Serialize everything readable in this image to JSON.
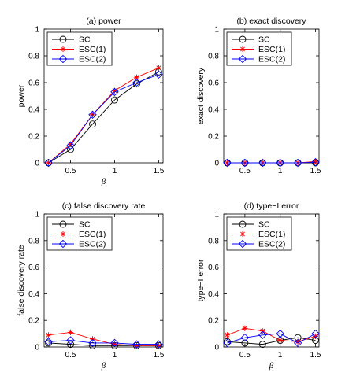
{
  "chart_data": [
    {
      "type": "line",
      "title": "(a) power",
      "xlabel": "β",
      "ylabel": "power",
      "xlim": [
        0.2,
        1.55
      ],
      "ylim": [
        0,
        1
      ],
      "xticks": [
        0.5,
        1,
        1.5
      ],
      "yticks": [
        0,
        0.2,
        0.4,
        0.6,
        0.8,
        1
      ],
      "xtick_labels": [
        "0.5",
        "1",
        "1.5"
      ],
      "ytick_labels": [
        "0",
        "0.2",
        "0.4",
        "0.6",
        "0.8",
        "1"
      ],
      "legend": "top-left",
      "grid": false,
      "x": [
        0.25,
        0.5,
        0.75,
        1.0,
        1.25,
        1.5
      ],
      "series": [
        {
          "name": "SC",
          "color": "#000000",
          "marker": "circle",
          "values": [
            0.0,
            0.1,
            0.29,
            0.47,
            0.59,
            0.68
          ]
        },
        {
          "name": "ESC(1)",
          "color": "#ff0000",
          "marker": "star",
          "values": [
            0.0,
            0.14,
            0.36,
            0.54,
            0.64,
            0.71
          ]
        },
        {
          "name": "ESC(2)",
          "color": "#0000ff",
          "marker": "diamond",
          "values": [
            0.0,
            0.13,
            0.36,
            0.53,
            0.6,
            0.66
          ]
        }
      ]
    },
    {
      "type": "line",
      "title": "(b) exact discovery",
      "xlabel": "",
      "ylabel": "exact discovery",
      "xlim": [
        0.2,
        1.55
      ],
      "ylim": [
        0,
        1
      ],
      "xticks": [
        0.5,
        1,
        1.5
      ],
      "yticks": [
        0,
        0.2,
        0.4,
        0.6,
        0.8,
        1
      ],
      "xtick_labels": [
        "0.5",
        "1",
        "1.5"
      ],
      "ytick_labels": [
        "0",
        "0.2",
        "0.4",
        "0.6",
        "0.8",
        "1"
      ],
      "legend": "top-left",
      "grid": false,
      "x": [
        0.25,
        0.5,
        0.75,
        1.0,
        1.25,
        1.5
      ],
      "series": [
        {
          "name": "SC",
          "color": "#000000",
          "marker": "circle",
          "values": [
            0,
            0,
            0,
            0,
            0,
            0
          ]
        },
        {
          "name": "ESC(1)",
          "color": "#ff0000",
          "marker": "star",
          "values": [
            0,
            0,
            0,
            0,
            0,
            0.01
          ]
        },
        {
          "name": "ESC(2)",
          "color": "#0000ff",
          "marker": "diamond",
          "values": [
            0,
            0,
            0,
            0,
            0,
            0.005
          ]
        }
      ]
    },
    {
      "type": "line",
      "title": "(c) false discovery rate",
      "xlabel": "β",
      "ylabel": "false discovery rate",
      "xlim": [
        0.2,
        1.55
      ],
      "ylim": [
        0,
        1
      ],
      "xticks": [
        0.5,
        1,
        1.5
      ],
      "yticks": [
        0,
        0.2,
        0.4,
        0.6,
        0.8,
        1
      ],
      "xtick_labels": [
        "0.5",
        "1",
        "1.5"
      ],
      "ytick_labels": [
        "0",
        "0.2",
        "0.4",
        "0.6",
        "0.8",
        "1"
      ],
      "legend": "top-left",
      "grid": false,
      "x": [
        0.25,
        0.5,
        0.75,
        1.0,
        1.25,
        1.5
      ],
      "series": [
        {
          "name": "SC",
          "color": "#000000",
          "marker": "circle",
          "values": [
            0.03,
            0.02,
            0.01,
            0.01,
            0.01,
            0.01
          ]
        },
        {
          "name": "ESC(1)",
          "color": "#ff0000",
          "marker": "star",
          "values": [
            0.09,
            0.11,
            0.06,
            0.02,
            0.01,
            0.01
          ]
        },
        {
          "name": "ESC(2)",
          "color": "#0000ff",
          "marker": "diamond",
          "values": [
            0.04,
            0.05,
            0.03,
            0.03,
            0.02,
            0.02
          ]
        }
      ]
    },
    {
      "type": "line",
      "title": "(d) type−I error",
      "xlabel": "β",
      "ylabel": "type−I error",
      "xlim": [
        0.2,
        1.55
      ],
      "ylim": [
        0,
        1
      ],
      "xticks": [
        0.5,
        1,
        1.5
      ],
      "yticks": [
        0,
        0.2,
        0.4,
        0.6,
        0.8,
        1
      ],
      "xtick_labels": [
        "0.5",
        "1",
        "1.5"
      ],
      "ytick_labels": [
        "0",
        "0.2",
        "0.4",
        "0.6",
        "0.8",
        "1"
      ],
      "legend": "top-left",
      "grid": false,
      "x": [
        0.25,
        0.5,
        0.75,
        1.0,
        1.25,
        1.5
      ],
      "series": [
        {
          "name": "SC",
          "color": "#000000",
          "marker": "circle",
          "values": [
            0.04,
            0.03,
            0.02,
            0.05,
            0.07,
            0.05
          ]
        },
        {
          "name": "ESC(1)",
          "color": "#ff0000",
          "marker": "star",
          "values": [
            0.09,
            0.14,
            0.12,
            0.05,
            0.04,
            0.08
          ]
        },
        {
          "name": "ESC(2)",
          "color": "#0000ff",
          "marker": "diamond",
          "values": [
            0.03,
            0.07,
            0.09,
            0.1,
            0.03,
            0.1
          ]
        }
      ]
    }
  ]
}
